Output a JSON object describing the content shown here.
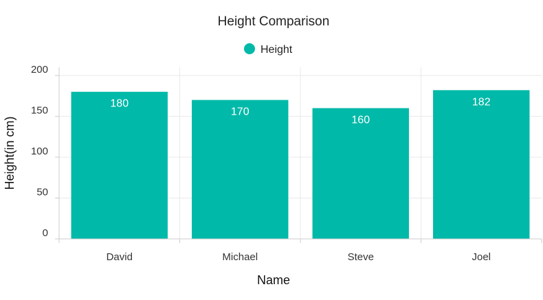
{
  "chart_data": {
    "type": "bar",
    "title": "Height Comparison",
    "xlabel": "Name",
    "ylabel": "Height(in cm)",
    "categories": [
      "David",
      "Michael",
      "Steve",
      "Joel"
    ],
    "series": [
      {
        "name": "Height",
        "values": [
          180,
          170,
          160,
          182
        ],
        "color": "#00b9a8"
      }
    ],
    "data_labels": [
      "180",
      "170",
      "160",
      "182"
    ],
    "ylim": [
      0,
      200
    ],
    "yticks": [
      0,
      50,
      100,
      150,
      200
    ],
    "ytick_labels": [
      "0",
      "50",
      "100",
      "150",
      "200"
    ],
    "grid": true,
    "legend_position": "top-center"
  }
}
